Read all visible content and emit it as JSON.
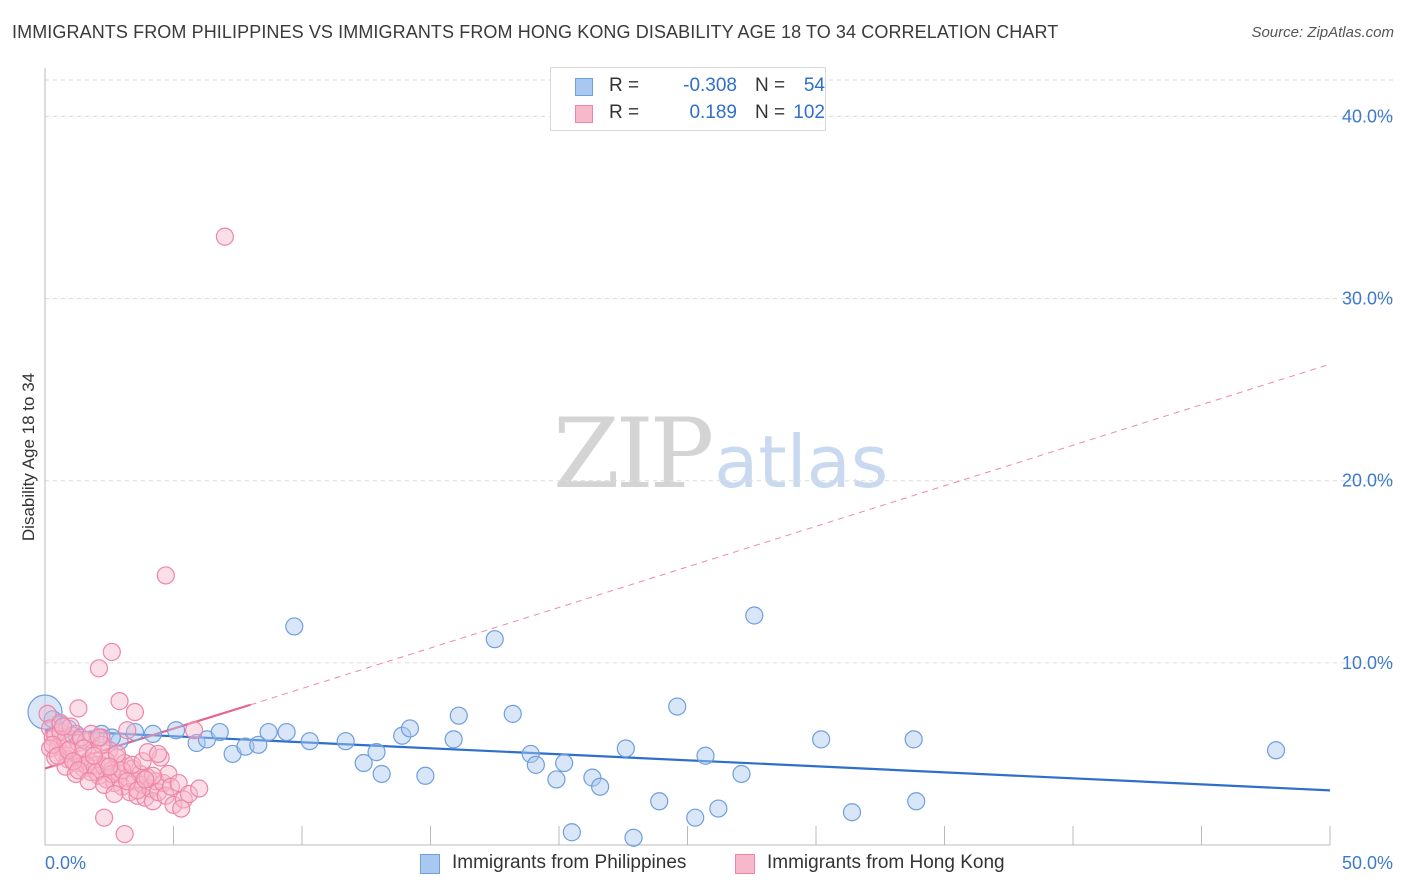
{
  "header": {
    "title": "IMMIGRANTS FROM PHILIPPINES VS IMMIGRANTS FROM HONG KONG DISABILITY AGE 18 TO 34 CORRELATION CHART",
    "source": "Source: ZipAtlas.com"
  },
  "watermark": {
    "zip": "ZIP",
    "atlas": "atlas"
  },
  "stats_legend": {
    "rows": [
      {
        "r_label": "R =",
        "r_value": "-0.308",
        "n_label": "N =",
        "n_value": "54"
      },
      {
        "r_label": "R =",
        "r_value": "0.189",
        "n_label": "N =",
        "n_value": "102"
      }
    ]
  },
  "bottom_legend": {
    "philippines": "Immigrants from Philippines",
    "hongkong": "Immigrants from Hong Kong"
  },
  "colors": {
    "philippines_fill": "#a9c8f0",
    "philippines_stroke": "#6f9fdc",
    "philippines_line": "#2f6fcc",
    "hongkong_fill": "#f7b8cb",
    "hongkong_stroke": "#ee86a6",
    "hongkong_line": "#e8628c",
    "axis_text": "#3e7acb",
    "grid": "#dcdcdc"
  },
  "chart_data": {
    "type": "scatter",
    "title": "IMMIGRANTS FROM PHILIPPINES VS IMMIGRANTS FROM HONG KONG DISABILITY AGE 18 TO 34 CORRELATION CHART",
    "xlabel": "",
    "ylabel": "Disability Age 18 to 34",
    "xlim": [
      0,
      50
    ],
    "ylim": [
      0,
      42
    ],
    "x_tick_labels": [
      "0.0%",
      "50.0%"
    ],
    "y_ticks": [
      10,
      20,
      30,
      40
    ],
    "y_tick_labels": [
      "10.0%",
      "20.0%",
      "30.0%",
      "40.0%"
    ],
    "grid": true,
    "legend_position": "bottom",
    "series": [
      {
        "name": "Immigrants from Philippines",
        "points": [
          [
            0.0,
            7.3
          ],
          [
            0.6,
            6.6
          ],
          [
            0.9,
            6.4
          ],
          [
            1.2,
            6.1
          ],
          [
            1.8,
            5.8
          ],
          [
            2.2,
            6.1
          ],
          [
            2.9,
            5.7
          ],
          [
            3.5,
            6.2
          ],
          [
            4.2,
            6.1
          ],
          [
            5.1,
            6.3
          ],
          [
            5.9,
            5.6
          ],
          [
            6.3,
            5.8
          ],
          [
            6.8,
            6.2
          ],
          [
            7.3,
            5.0
          ],
          [
            7.8,
            5.4
          ],
          [
            8.3,
            5.5
          ],
          [
            8.7,
            6.2
          ],
          [
            9.4,
            6.2
          ],
          [
            9.7,
            12.0
          ],
          [
            10.3,
            5.7
          ],
          [
            11.7,
            5.7
          ],
          [
            12.4,
            4.5
          ],
          [
            12.9,
            5.1
          ],
          [
            13.1,
            3.9
          ],
          [
            13.9,
            6.0
          ],
          [
            14.2,
            6.4
          ],
          [
            14.8,
            3.8
          ],
          [
            15.9,
            5.8
          ],
          [
            16.1,
            7.1
          ],
          [
            17.5,
            11.3
          ],
          [
            18.2,
            7.2
          ],
          [
            18.9,
            5.0
          ],
          [
            19.1,
            4.4
          ],
          [
            19.9,
            3.6
          ],
          [
            20.2,
            4.5
          ],
          [
            20.5,
            0.7
          ],
          [
            21.3,
            3.7
          ],
          [
            21.6,
            3.2
          ],
          [
            22.6,
            5.3
          ],
          [
            22.9,
            0.4
          ],
          [
            23.9,
            2.4
          ],
          [
            24.6,
            7.6
          ],
          [
            25.3,
            1.5
          ],
          [
            25.7,
            4.9
          ],
          [
            26.2,
            2.0
          ],
          [
            27.1,
            3.9
          ],
          [
            27.6,
            12.6
          ],
          [
            30.2,
            5.8
          ],
          [
            31.4,
            1.8
          ],
          [
            33.8,
            5.8
          ],
          [
            33.9,
            2.4
          ],
          [
            47.9,
            5.2
          ],
          [
            0.3,
            6.9
          ],
          [
            2.6,
            5.9
          ]
        ]
      },
      {
        "name": "Immigrants from Hong Kong",
        "points": [
          [
            0.1,
            7.2
          ],
          [
            0.2,
            6.4
          ],
          [
            0.3,
            5.9
          ],
          [
            0.4,
            6.0
          ],
          [
            0.5,
            5.4
          ],
          [
            0.6,
            6.2
          ],
          [
            0.7,
            5.0
          ],
          [
            0.8,
            5.8
          ],
          [
            0.9,
            4.7
          ],
          [
            1.0,
            5.3
          ],
          [
            1.1,
            6.0
          ],
          [
            1.2,
            4.5
          ],
          [
            1.3,
            5.6
          ],
          [
            1.4,
            4.9
          ],
          [
            1.5,
            4.2
          ],
          [
            1.6,
            5.7
          ],
          [
            1.7,
            4.6
          ],
          [
            1.8,
            4.0
          ],
          [
            1.9,
            5.1
          ],
          [
            2.0,
            4.4
          ],
          [
            2.1,
            3.8
          ],
          [
            2.2,
            5.9
          ],
          [
            2.3,
            4.3
          ],
          [
            2.4,
            3.6
          ],
          [
            2.5,
            5.2
          ],
          [
            2.6,
            4.1
          ],
          [
            2.7,
            3.4
          ],
          [
            2.8,
            4.8
          ],
          [
            2.9,
            3.9
          ],
          [
            3.0,
            3.2
          ],
          [
            3.1,
            4.5
          ],
          [
            3.2,
            3.7
          ],
          [
            3.3,
            2.9
          ],
          [
            3.4,
            4.2
          ],
          [
            3.5,
            3.5
          ],
          [
            3.6,
            2.7
          ],
          [
            3.7,
            3.9
          ],
          [
            3.8,
            3.3
          ],
          [
            3.9,
            2.6
          ],
          [
            4.0,
            3.7
          ],
          [
            4.1,
            3.1
          ],
          [
            4.2,
            2.4
          ],
          [
            4.3,
            3.5
          ],
          [
            4.4,
            2.9
          ],
          [
            4.5,
            4.8
          ],
          [
            4.6,
            3.4
          ],
          [
            4.7,
            2.7
          ],
          [
            4.8,
            3.9
          ],
          [
            4.9,
            3.2
          ],
          [
            5.0,
            2.2
          ],
          [
            5.2,
            3.4
          ],
          [
            5.4,
            2.5
          ],
          [
            5.6,
            2.8
          ],
          [
            5.8,
            6.3
          ],
          [
            6.0,
            3.1
          ],
          [
            1.3,
            7.5
          ],
          [
            2.1,
            9.7
          ],
          [
            2.6,
            10.6
          ],
          [
            2.9,
            7.9
          ],
          [
            3.5,
            7.3
          ],
          [
            4.7,
            14.8
          ],
          [
            7.0,
            33.4
          ],
          [
            3.2,
            6.3
          ],
          [
            2.3,
            1.5
          ],
          [
            3.1,
            0.6
          ],
          [
            5.3,
            2.0
          ],
          [
            0.2,
            5.3
          ],
          [
            0.4,
            4.8
          ],
          [
            0.6,
            6.7
          ],
          [
            0.8,
            4.3
          ],
          [
            1.0,
            6.5
          ],
          [
            1.2,
            3.9
          ],
          [
            1.4,
            5.9
          ],
          [
            1.6,
            4.4
          ],
          [
            1.8,
            6.1
          ],
          [
            2.0,
            4.0
          ],
          [
            2.2,
            5.5
          ],
          [
            2.4,
            4.6
          ],
          [
            2.6,
            3.9
          ],
          [
            2.8,
            5.0
          ],
          [
            3.0,
            4.1
          ],
          [
            3.2,
            3.5
          ],
          [
            3.4,
            4.4
          ],
          [
            3.6,
            3.0
          ],
          [
            3.8,
            4.6
          ],
          [
            4.0,
            5.1
          ],
          [
            4.2,
            3.8
          ],
          [
            4.4,
            5.0
          ],
          [
            0.3,
            5.5
          ],
          [
            0.5,
            4.9
          ],
          [
            0.7,
            6.5
          ],
          [
            0.9,
            5.2
          ],
          [
            1.1,
            4.6
          ],
          [
            1.3,
            4.1
          ],
          [
            1.5,
            5.3
          ],
          [
            1.7,
            3.5
          ],
          [
            1.9,
            4.9
          ],
          [
            2.1,
            5.9
          ],
          [
            2.3,
            3.3
          ],
          [
            2.5,
            4.3
          ],
          [
            2.7,
            2.8
          ],
          [
            3.9,
            3.6
          ]
        ]
      }
    ],
    "trendlines": [
      {
        "series": "Immigrants from Philippines",
        "x": [
          0,
          50
        ],
        "y": [
          6.3,
          3.0
        ],
        "style": "solid"
      },
      {
        "series": "Immigrants from Hong Kong",
        "x": [
          0,
          8
        ],
        "y": [
          4.2,
          7.7
        ],
        "style": "solid"
      },
      {
        "series": "Immigrants from Hong Kong",
        "x": [
          8,
          50
        ],
        "y": [
          7.7,
          26.4
        ],
        "style": "dashed"
      }
    ]
  }
}
